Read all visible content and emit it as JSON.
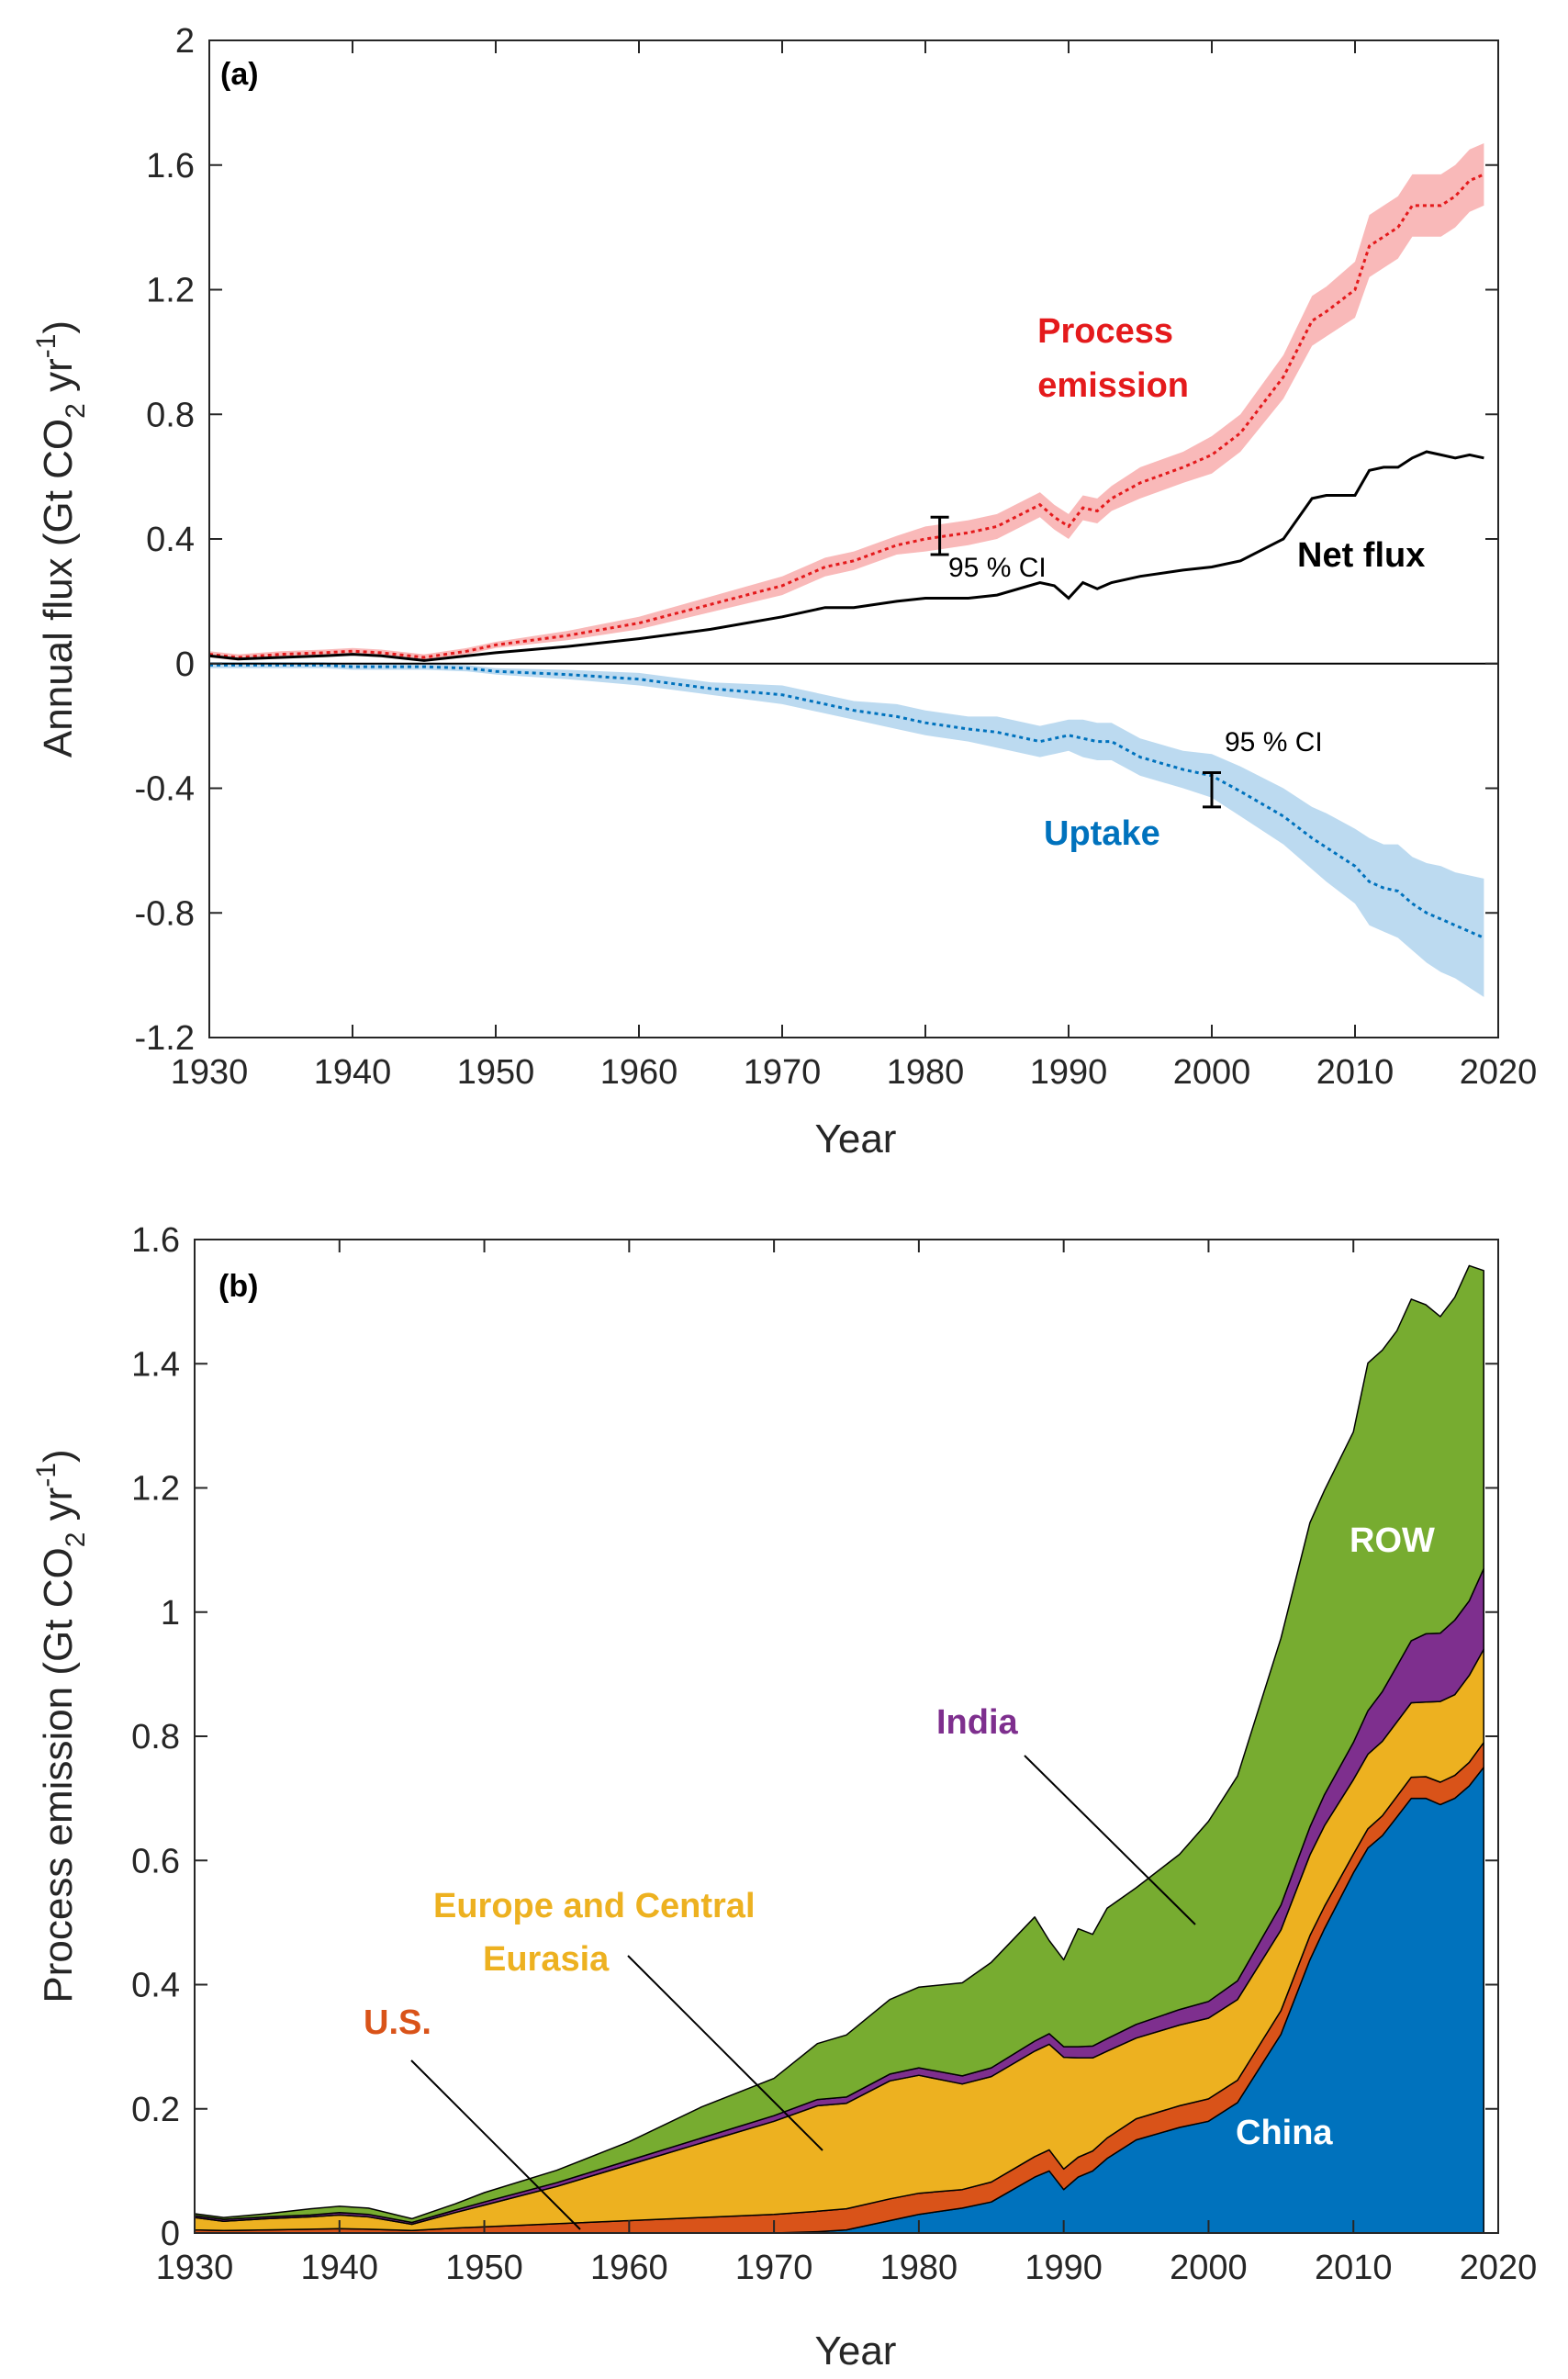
{
  "chart_data": [
    {
      "type": "line",
      "panel_label": "(a)",
      "xlabel": "Year",
      "ylabel_main": "Annual flux (Gt CO",
      "ylabel_sub": "2",
      "ylabel_mid": " yr",
      "ylabel_sup": "-1",
      "ylabel_end": ")",
      "xlim": [
        1930,
        2020
      ],
      "ylim": [
        -1.2,
        2
      ],
      "xticks": [
        "1930",
        "1940",
        "1950",
        "1960",
        "1970",
        "1980",
        "1990",
        "2000",
        "2010",
        "2020"
      ],
      "yticks": [
        "-1.2",
        "-0.8",
        "-0.4",
        "0",
        "0.4",
        "0.8",
        "1.2",
        "1.6",
        "2"
      ],
      "x": [
        1930,
        1932,
        1935,
        1938,
        1940,
        1942,
        1945,
        1948,
        1950,
        1955,
        1960,
        1965,
        1970,
        1973,
        1975,
        1978,
        1980,
        1983,
        1985,
        1988,
        1989,
        1990,
        1991,
        1992,
        1993,
        1995,
        1998,
        2000,
        2002,
        2005,
        2007,
        2008,
        2010,
        2011,
        2012,
        2013,
        2014,
        2015,
        2016,
        2017,
        2018,
        2019
      ],
      "series": [
        {
          "name": "Process emission",
          "color": "#e41a1c",
          "values": [
            0.03,
            0.02,
            0.03,
            0.035,
            0.04,
            0.035,
            0.02,
            0.04,
            0.06,
            0.09,
            0.13,
            0.19,
            0.25,
            0.31,
            0.33,
            0.38,
            0.4,
            0.42,
            0.44,
            0.51,
            0.47,
            0.44,
            0.5,
            0.49,
            0.53,
            0.58,
            0.63,
            0.67,
            0.74,
            0.92,
            1.1,
            1.13,
            1.2,
            1.34,
            1.37,
            1.4,
            1.47,
            1.47,
            1.47,
            1.5,
            1.55,
            1.57
          ],
          "ci_lower": [
            0.02,
            0.01,
            0.02,
            0.025,
            0.03,
            0.025,
            0.01,
            0.03,
            0.05,
            0.075,
            0.11,
            0.165,
            0.22,
            0.28,
            0.3,
            0.35,
            0.36,
            0.38,
            0.4,
            0.47,
            0.43,
            0.4,
            0.46,
            0.45,
            0.49,
            0.53,
            0.58,
            0.61,
            0.68,
            0.85,
            1.02,
            1.05,
            1.11,
            1.24,
            1.27,
            1.3,
            1.37,
            1.37,
            1.37,
            1.4,
            1.45,
            1.47
          ],
          "ci_upper": [
            0.04,
            0.03,
            0.04,
            0.045,
            0.05,
            0.045,
            0.03,
            0.05,
            0.07,
            0.105,
            0.15,
            0.215,
            0.28,
            0.34,
            0.36,
            0.41,
            0.44,
            0.46,
            0.48,
            0.55,
            0.51,
            0.48,
            0.54,
            0.53,
            0.57,
            0.63,
            0.68,
            0.73,
            0.8,
            0.99,
            1.18,
            1.21,
            1.29,
            1.44,
            1.47,
            1.5,
            1.57,
            1.57,
            1.57,
            1.6,
            1.65,
            1.67
          ]
        },
        {
          "name": "Net flux",
          "color": "#000000",
          "values": [
            0.025,
            0.015,
            0.02,
            0.025,
            0.03,
            0.025,
            0.01,
            0.025,
            0.035,
            0.055,
            0.08,
            0.11,
            0.15,
            0.18,
            0.18,
            0.2,
            0.21,
            0.21,
            0.22,
            0.26,
            0.25,
            0.21,
            0.26,
            0.24,
            0.26,
            0.28,
            0.3,
            0.31,
            0.33,
            0.4,
            0.53,
            0.54,
            0.54,
            0.62,
            0.63,
            0.63,
            0.66,
            0.68,
            0.67,
            0.66,
            0.67,
            0.66
          ]
        },
        {
          "name": "Uptake",
          "color": "#0072bd",
          "values": [
            -0.005,
            -0.005,
            -0.005,
            -0.005,
            -0.01,
            -0.01,
            -0.01,
            -0.015,
            -0.025,
            -0.035,
            -0.05,
            -0.08,
            -0.1,
            -0.13,
            -0.15,
            -0.17,
            -0.19,
            -0.21,
            -0.22,
            -0.25,
            -0.24,
            -0.23,
            -0.24,
            -0.25,
            -0.25,
            -0.3,
            -0.34,
            -0.36,
            -0.41,
            -0.49,
            -0.56,
            -0.59,
            -0.65,
            -0.7,
            -0.72,
            -0.73,
            -0.77,
            -0.8,
            -0.82,
            -0.84,
            -0.86,
            -0.88
          ],
          "ci_lower": [
            -0.015,
            -0.015,
            -0.015,
            -0.015,
            -0.02,
            -0.02,
            -0.02,
            -0.025,
            -0.035,
            -0.05,
            -0.07,
            -0.1,
            -0.13,
            -0.16,
            -0.18,
            -0.21,
            -0.23,
            -0.25,
            -0.27,
            -0.3,
            -0.29,
            -0.28,
            -0.3,
            -0.31,
            -0.31,
            -0.36,
            -0.4,
            -0.43,
            -0.49,
            -0.58,
            -0.66,
            -0.7,
            -0.77,
            -0.84,
            -0.86,
            -0.88,
            -0.92,
            -0.96,
            -0.99,
            -1.01,
            -1.04,
            -1.07
          ],
          "ci_upper": [
            0.005,
            0.005,
            0.005,
            0.005,
            0.0,
            0.0,
            0.0,
            -0.005,
            -0.015,
            -0.02,
            -0.03,
            -0.06,
            -0.07,
            -0.1,
            -0.12,
            -0.13,
            -0.15,
            -0.17,
            -0.17,
            -0.2,
            -0.19,
            -0.18,
            -0.18,
            -0.19,
            -0.19,
            -0.24,
            -0.28,
            -0.29,
            -0.33,
            -0.4,
            -0.46,
            -0.48,
            -0.53,
            -0.56,
            -0.58,
            -0.58,
            -0.62,
            -0.64,
            -0.65,
            -0.67,
            -0.68,
            -0.69
          ]
        }
      ],
      "annotations": {
        "process_line1": "Process",
        "process_line2": "emission",
        "net_flux": "Net flux",
        "uptake": "Uptake",
        "ci_1": "95 % CI",
        "ci_2": "95 % CI"
      },
      "ci_bars": [
        {
          "x": 1981,
          "low": 0.35,
          "high": 0.47
        },
        {
          "x": 2000,
          "low": -0.46,
          "high": -0.35
        }
      ],
      "fill_colors": {
        "process_ci": "#f9b9b9",
        "uptake_ci": "#bcdaf0"
      }
    },
    {
      "type": "area",
      "stacked": true,
      "panel_label": "(b)",
      "xlabel": "Year",
      "ylabel_main": "Process emission (Gt CO",
      "ylabel_sub": "2",
      "ylabel_mid": " yr",
      "ylabel_sup": "-1",
      "ylabel_end": ")",
      "xlim": [
        1930,
        2020
      ],
      "ylim": [
        0,
        1.6
      ],
      "xticks": [
        "1930",
        "1940",
        "1950",
        "1960",
        "1970",
        "1980",
        "1990",
        "2000",
        "2010",
        "2020"
      ],
      "yticks": [
        "0",
        "0.2",
        "0.4",
        "0.6",
        "0.8",
        "1",
        "1.2",
        "1.4",
        "1.6"
      ],
      "x": [
        1930,
        1932,
        1935,
        1938,
        1940,
        1942,
        1945,
        1948,
        1950,
        1955,
        1960,
        1965,
        1970,
        1973,
        1975,
        1978,
        1980,
        1983,
        1985,
        1988,
        1989,
        1990,
        1991,
        1992,
        1993,
        1995,
        1998,
        2000,
        2002,
        2005,
        2007,
        2008,
        2010,
        2011,
        2012,
        2013,
        2014,
        2015,
        2016,
        2017,
        2018,
        2019
      ],
      "series": [
        {
          "name": "China",
          "color": "#0072bd",
          "values": [
            0,
            0,
            0,
            0,
            0,
            0,
            0,
            0,
            0,
            0,
            0,
            0,
            0,
            0.002,
            0.005,
            0.02,
            0.03,
            0.04,
            0.05,
            0.09,
            0.1,
            0.07,
            0.09,
            0.1,
            0.12,
            0.15,
            0.17,
            0.18,
            0.21,
            0.32,
            0.44,
            0.49,
            0.58,
            0.62,
            0.64,
            0.67,
            0.7,
            0.7,
            0.69,
            0.7,
            0.72,
            0.75
          ]
        },
        {
          "name": "U.S.",
          "color": "#d95319",
          "values": [
            0.005,
            0.004,
            0.005,
            0.006,
            0.007,
            0.006,
            0.004,
            0.008,
            0.01,
            0.015,
            0.02,
            0.025,
            0.03,
            0.033,
            0.034,
            0.035,
            0.034,
            0.03,
            0.032,
            0.033,
            0.034,
            0.033,
            0.032,
            0.032,
            0.033,
            0.034,
            0.035,
            0.036,
            0.036,
            0.038,
            0.039,
            0.036,
            0.03,
            0.031,
            0.032,
            0.033,
            0.034,
            0.035,
            0.036,
            0.037,
            0.038,
            0.04
          ]
        },
        {
          "name": "Europe and Central Eurasia",
          "color": "#edb120",
          "values": [
            0.02,
            0.015,
            0.018,
            0.02,
            0.022,
            0.02,
            0.01,
            0.025,
            0.035,
            0.06,
            0.09,
            0.12,
            0.15,
            0.17,
            0.17,
            0.19,
            0.19,
            0.17,
            0.17,
            0.17,
            0.17,
            0.18,
            0.16,
            0.15,
            0.14,
            0.13,
            0.13,
            0.13,
            0.13,
            0.13,
            0.13,
            0.13,
            0.12,
            0.12,
            0.12,
            0.12,
            0.12,
            0.12,
            0.13,
            0.13,
            0.14,
            0.15
          ]
        },
        {
          "name": "India",
          "color": "#7e2f8e",
          "values": [
            0.003,
            0.003,
            0.003,
            0.003,
            0.004,
            0.004,
            0.003,
            0.004,
            0.005,
            0.006,
            0.007,
            0.008,
            0.009,
            0.01,
            0.01,
            0.011,
            0.012,
            0.013,
            0.014,
            0.016,
            0.017,
            0.017,
            0.018,
            0.019,
            0.02,
            0.022,
            0.025,
            0.027,
            0.03,
            0.04,
            0.045,
            0.05,
            0.06,
            0.07,
            0.08,
            0.09,
            0.1,
            0.11,
            0.11,
            0.12,
            0.12,
            0.13
          ]
        },
        {
          "name": "ROW",
          "color": "#77ac30",
          "values": [
            0.003,
            0.003,
            0.005,
            0.01,
            0.01,
            0.01,
            0.006,
            0.01,
            0.015,
            0.02,
            0.03,
            0.05,
            0.06,
            0.09,
            0.1,
            0.12,
            0.13,
            0.15,
            0.17,
            0.2,
            0.15,
            0.14,
            0.19,
            0.18,
            0.21,
            0.22,
            0.25,
            0.29,
            0.33,
            0.43,
            0.49,
            0.49,
            0.5,
            0.56,
            0.55,
            0.54,
            0.55,
            0.53,
            0.51,
            0.52,
            0.54,
            0.48
          ]
        }
      ],
      "labels": {
        "row": "ROW",
        "india": "India",
        "europe_line1": "Europe and Central",
        "europe_line2": "Eurasia",
        "us": "U.S.",
        "china": "China"
      }
    }
  ]
}
